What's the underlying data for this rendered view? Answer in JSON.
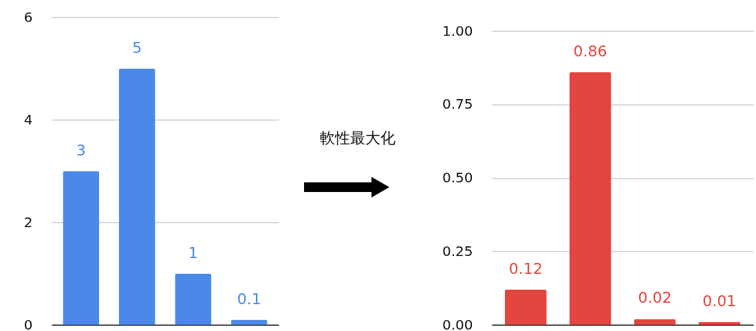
{
  "chart_data": [
    {
      "type": "bar",
      "categories": [
        null,
        null,
        null,
        null
      ],
      "values": [
        3,
        5,
        1,
        0.1
      ],
      "color": "#4a89e8",
      "ylim": [
        0,
        6
      ],
      "yticks": [
        0,
        2,
        4,
        6
      ],
      "grid": "y",
      "data_labels": true,
      "tick_labels": "y"
    },
    {
      "type": "other",
      "annotations": [
        "軟性最大化"
      ]
    },
    {
      "type": "bar",
      "categories": [
        null,
        null,
        null,
        null
      ],
      "values": [
        0.12,
        0.86,
        0.02,
        0.01
      ],
      "color": "#e2463f",
      "ylim": [
        0,
        1
      ],
      "yticks": [
        {
          "value": 0,
          "label": "0.00"
        },
        {
          "value": 0.25,
          "label": "0.25"
        },
        {
          "value": 0.5,
          "label": "0.50"
        },
        {
          "value": 0.75,
          "label": "0.75"
        },
        {
          "value": 1,
          "label": "1.00"
        }
      ],
      "grid": "y",
      "data_labels": true,
      "tick_labels": "y"
    }
  ]
}
